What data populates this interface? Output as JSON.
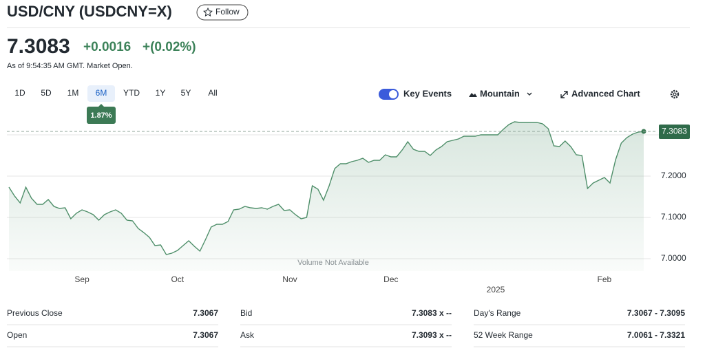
{
  "header": {
    "title": "USD/CNY (USDCNY=X)",
    "follow": "Follow"
  },
  "quote": {
    "price": "7.3083",
    "change": "+0.0016",
    "change_percent": "+(0.02%)",
    "timestamp": "As of 9:54:35 AM GMT. Market Open."
  },
  "ranges": {
    "buttons": [
      "1D",
      "5D",
      "1M",
      "6M",
      "YTD",
      "1Y",
      "5Y",
      "All"
    ],
    "selected_index": 3,
    "selected_change": "1.87%"
  },
  "toolbar": {
    "key_events": "Key Events",
    "chart_type": "Mountain",
    "advanced": "Advanced Chart"
  },
  "chart_data": {
    "type": "mountain",
    "color": "#4f8f6a",
    "categories": [
      null,
      null,
      null,
      null,
      null,
      null,
      null,
      null,
      null,
      null,
      null,
      null,
      null,
      "Sep",
      null,
      null,
      null,
      null,
      null,
      null,
      null,
      null,
      null,
      null,
      null,
      null,
      null,
      null,
      null,
      null,
      "Oct",
      null,
      null,
      null,
      null,
      null,
      null,
      null,
      null,
      null,
      null,
      null,
      null,
      null,
      null,
      null,
      null,
      null,
      null,
      null,
      "Nov",
      null,
      null,
      null,
      null,
      null,
      null,
      null,
      null,
      null,
      null,
      null,
      null,
      null,
      null,
      null,
      null,
      null,
      "Dec",
      null,
      null,
      null,
      null,
      null,
      null,
      null,
      null,
      null,
      null,
      null,
      null,
      null,
      null,
      null,
      null,
      null,
      null,
      null,
      null,
      null,
      null,
      null,
      null,
      null,
      null,
      null,
      null,
      null,
      null,
      null,
      null,
      null,
      null,
      null,
      null,
      null,
      "Feb",
      null,
      null,
      null,
      null,
      null,
      null,
      null
    ],
    "values": [
      7.1733,
      7.1517,
      7.135,
      7.1733,
      7.1467,
      7.1317,
      7.1317,
      7.1433,
      7.1267,
      7.1217,
      7.1233,
      7.0967,
      7.11,
      7.1183,
      7.1133,
      7.1067,
      7.0933,
      7.1067,
      7.1133,
      7.1183,
      7.11,
      7.0933,
      7.0917,
      7.0733,
      7.0633,
      7.0517,
      7.0317,
      7.0333,
      7.01,
      7.0133,
      7.02,
      7.0317,
      7.0433,
      7.03,
      7.0183,
      7.0467,
      7.0767,
      7.0833,
      7.0833,
      7.09,
      7.1183,
      7.12,
      7.1267,
      7.1233,
      7.1217,
      7.1233,
      7.12,
      7.1267,
      7.1317,
      7.1167,
      7.1183,
      7.1067,
      7.0967,
      7.1,
      7.1767,
      7.1683,
      7.1417,
      7.1767,
      7.2183,
      7.23,
      7.23,
      7.235,
      7.2383,
      7.2433,
      7.2333,
      7.2383,
      7.2383,
      7.2517,
      7.2467,
      7.2467,
      7.2633,
      7.2833,
      7.265,
      7.26,
      7.26,
      7.25,
      7.2633,
      7.2717,
      7.2833,
      7.2867,
      7.29,
      7.2967,
      7.2967,
      7.2967,
      7.3,
      7.3,
      7.3,
      7.3,
      7.3133,
      7.325,
      7.3317,
      7.33,
      7.33,
      7.33,
      7.33,
      7.3267,
      7.315,
      7.2733,
      7.2717,
      7.285,
      7.2717,
      7.2517,
      7.25,
      7.17,
      7.1833,
      7.19,
      7.1967,
      7.1833,
      7.24,
      7.28,
      7.2933,
      7.3017,
      7.3067,
      7.3083
    ],
    "ylim": [
      6.97,
      7.34
    ],
    "yticks": [
      {
        "value": 7,
        "label": "7.0000"
      },
      {
        "value": 7.1,
        "label": "7.1000"
      },
      {
        "value": 7.2,
        "label": "7.2000"
      }
    ],
    "grid": true,
    "current_value": 7.3083,
    "year_label": "2025",
    "note": "Volume Not Available"
  },
  "stats": {
    "columns": [
      [
        {
          "label": "Previous Close",
          "value": "7.3067"
        },
        {
          "label": "Open",
          "value": "7.3067"
        }
      ],
      [
        {
          "label": "Bid",
          "value": "7.3083 x --"
        },
        {
          "label": "Ask",
          "value": "7.3093 x --"
        }
      ],
      [
        {
          "label": "Day's Range",
          "value": "7.3067 - 7.3095"
        },
        {
          "label": "52 Week Range",
          "value": "7.0061 - 7.3321"
        }
      ]
    ]
  }
}
